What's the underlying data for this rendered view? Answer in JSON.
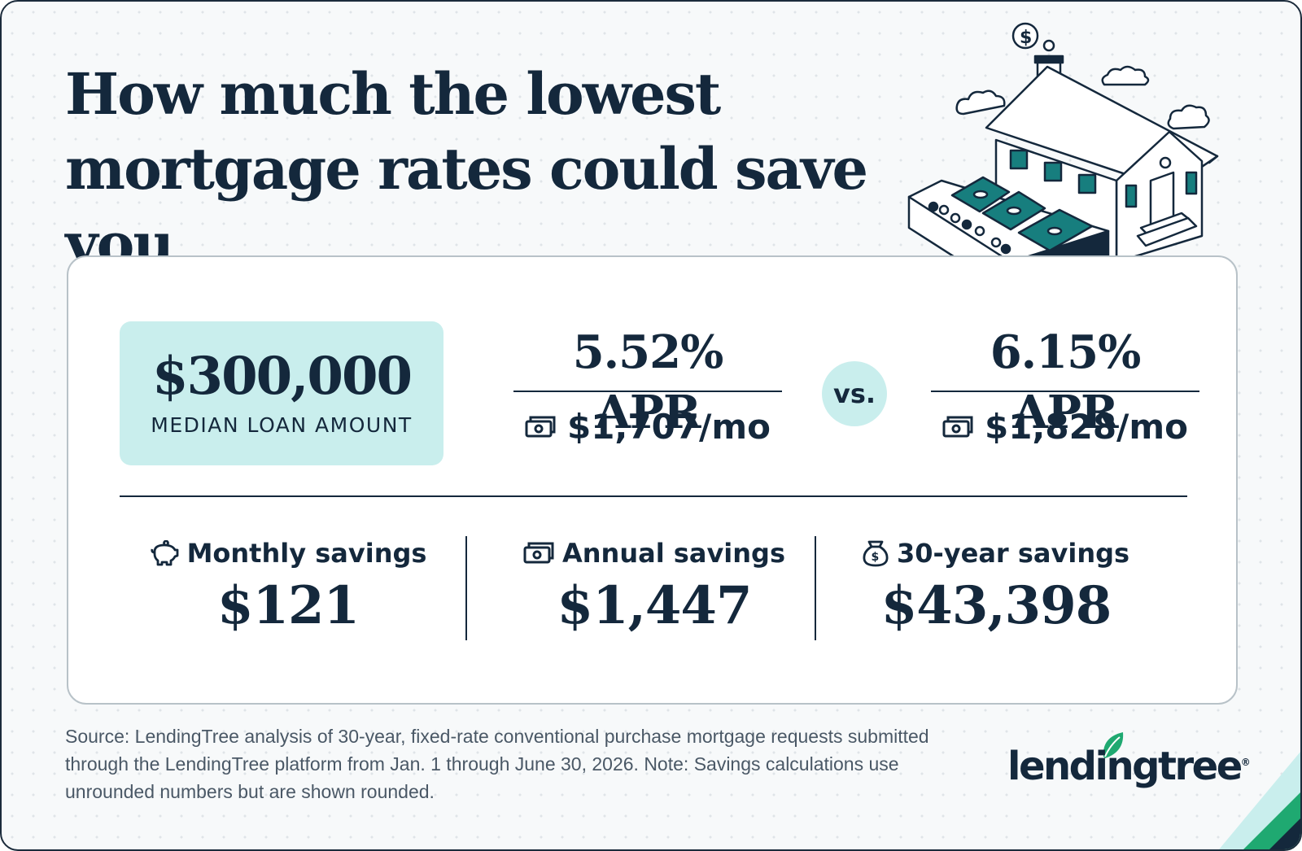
{
  "title": "How much the lowest mortgage rates could save you",
  "loan": {
    "amount": "$300,000",
    "label": "MEDIAN LOAN AMOUNT"
  },
  "rates": [
    {
      "apr": "5.52% APR",
      "monthly": "$1,707/mo",
      "icon": "cash-icon"
    },
    {
      "apr": "6.15% APR",
      "monthly": "$1,828/mo",
      "icon": "cash-icon"
    }
  ],
  "vs_label": "vs.",
  "savings": [
    {
      "label": "Monthly savings",
      "value": "$121",
      "icon": "piggy-bank-icon"
    },
    {
      "label": "Annual savings",
      "value": "$1,447",
      "icon": "cash-icon"
    },
    {
      "label": "30-year savings",
      "value": "$43,398",
      "icon": "money-bag-icon"
    }
  ],
  "source": "Source: LendingTree analysis of 30-year, fixed-rate conventional purchase mortgage requests submitted through the LendingTree platform from Jan. 1 through June 30, 2026. Note: Savings calculations use unrounded numbers but are shown rounded.",
  "logo": {
    "text": "lendingtree",
    "mark": "®"
  },
  "colors": {
    "navy": "#14283c",
    "mint": "#c9eeed",
    "teal": "#177e7e",
    "green": "#1fa971"
  }
}
